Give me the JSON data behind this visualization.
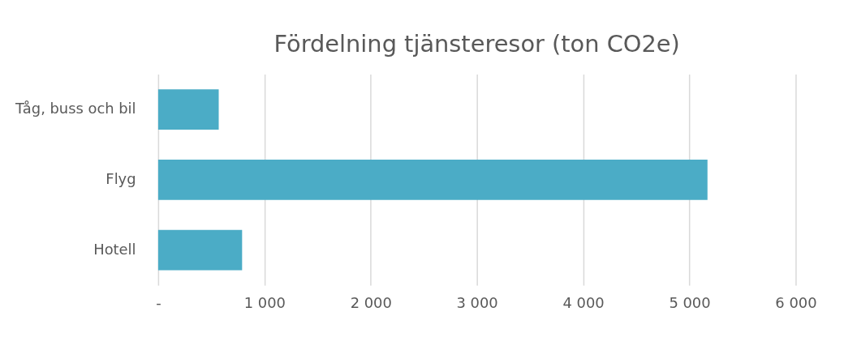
{
  "chart_data": {
    "type": "bar",
    "orientation": "horizontal",
    "title": "Fördelning tjänsteresor (ton CO2e)",
    "categories": [
      "Tåg, buss och bil",
      "Flyg",
      "Hotell"
    ],
    "values": [
      570,
      5170,
      790
    ],
    "color": "#4bacc6",
    "xlim": [
      0,
      6000
    ],
    "xticks": [
      {
        "value": 0,
        "label": "-"
      },
      {
        "value": 1000,
        "label": "1 000"
      },
      {
        "value": 2000,
        "label": "2 000"
      },
      {
        "value": 3000,
        "label": "3 000"
      },
      {
        "value": 4000,
        "label": "4 000"
      },
      {
        "value": 5000,
        "label": "5 000"
      },
      {
        "value": 6000,
        "label": "6 000"
      }
    ],
    "grid": "x"
  }
}
